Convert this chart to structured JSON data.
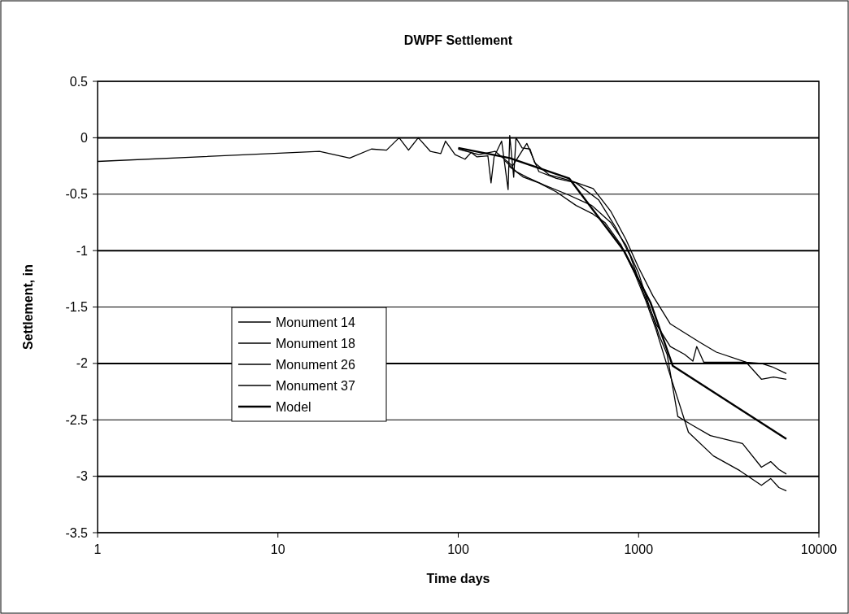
{
  "chart_data": {
    "type": "line",
    "title": "DWPF Settlement",
    "xlabel": "Time days",
    "ylabel": "Settlement, in",
    "log": "x",
    "xlim": [
      1,
      10000
    ],
    "xticks": [
      1,
      10,
      100,
      1000,
      10000
    ],
    "ylim": [
      -3.5,
      0.5
    ],
    "yticks": [
      0.5,
      0,
      -0.5,
      -1,
      -1.5,
      -2,
      -2.5,
      -3,
      -3.5
    ],
    "grid": "y",
    "legend": "center left",
    "line_style": "solid",
    "series": [
      {
        "name": "Monument 14",
        "color": "#000000",
        "x": [
          1,
          17,
          25,
          33,
          40,
          47,
          53,
          60,
          70,
          80,
          85,
          96,
          109,
          118,
          127,
          146,
          152,
          158,
          174,
          189,
          193,
          203,
          209,
          226,
          250,
          265,
          320,
          420,
          560,
          700,
          850,
          1000,
          1200,
          1500,
          2170,
          2700,
          3950,
          4800,
          5500,
          6600
        ],
        "values": [
          -0.21,
          -0.12,
          -0.18,
          -0.1,
          -0.11,
          0,
          -0.11,
          0,
          -0.12,
          -0.14,
          -0.03,
          -0.15,
          -0.19,
          -0.13,
          -0.17,
          -0.16,
          -0.4,
          -0.17,
          -0.03,
          -0.46,
          0.02,
          -0.35,
          0,
          -0.09,
          -0.1,
          -0.22,
          -0.33,
          -0.38,
          -0.45,
          -0.65,
          -0.9,
          -1.15,
          -1.4,
          -1.65,
          -1.81,
          -1.9,
          -1.99,
          -2,
          -2.03,
          -2.09
        ]
      },
      {
        "name": "Monument 18",
        "color": "#000000",
        "x": [
          100,
          130,
          160,
          200,
          240,
          280,
          350,
          450,
          600,
          750,
          900,
          1050,
          1250,
          1500,
          1800,
          2000,
          2100,
          2300,
          3950,
          4800,
          5600,
          6600
        ],
        "values": [
          -0.1,
          -0.15,
          -0.12,
          -0.25,
          -0.05,
          -0.3,
          -0.36,
          -0.4,
          -0.55,
          -0.8,
          -1.05,
          -1.35,
          -1.65,
          -1.85,
          -1.92,
          -1.98,
          -1.85,
          -1.99,
          -1.99,
          -2.14,
          -2.12,
          -2.14
        ]
      },
      {
        "name": "Monument 26",
        "color": "#000000",
        "x": [
          180,
          210,
          240,
          300,
          400,
          550,
          700,
          850,
          1000,
          1150,
          1300,
          1440,
          1650,
          2000,
          2500,
          3770,
          4800,
          5400,
          6000,
          6600
        ],
        "values": [
          -0.2,
          -0.3,
          -0.35,
          -0.42,
          -0.5,
          -0.6,
          -0.75,
          -0.95,
          -1.2,
          -1.5,
          -1.75,
          -1.92,
          -2.47,
          -2.55,
          -2.64,
          -2.71,
          -2.92,
          -2.87,
          -2.94,
          -2.98
        ]
      },
      {
        "name": "Monument 37",
        "color": "#000000",
        "x": [
          190,
          230,
          280,
          350,
          450,
          550,
          650,
          800,
          950,
          1100,
          1250,
          1440,
          1890,
          2600,
          3640,
          4800,
          5400,
          6000,
          6600
        ],
        "values": [
          -0.25,
          -0.35,
          -0.4,
          -0.48,
          -0.6,
          -0.67,
          -0.75,
          -0.95,
          -1.2,
          -1.45,
          -1.7,
          -2.02,
          -2.61,
          -2.82,
          -2.95,
          -3.08,
          -3.02,
          -3.1,
          -3.13
        ]
      },
      {
        "name": "Model",
        "color": "#000000",
        "x": [
          100,
          193,
          412,
          828,
          1164,
          1545,
          6600
        ],
        "values": [
          -0.09,
          -0.18,
          -0.36,
          -1,
          -1.46,
          -2.02,
          -2.67
        ]
      }
    ]
  }
}
